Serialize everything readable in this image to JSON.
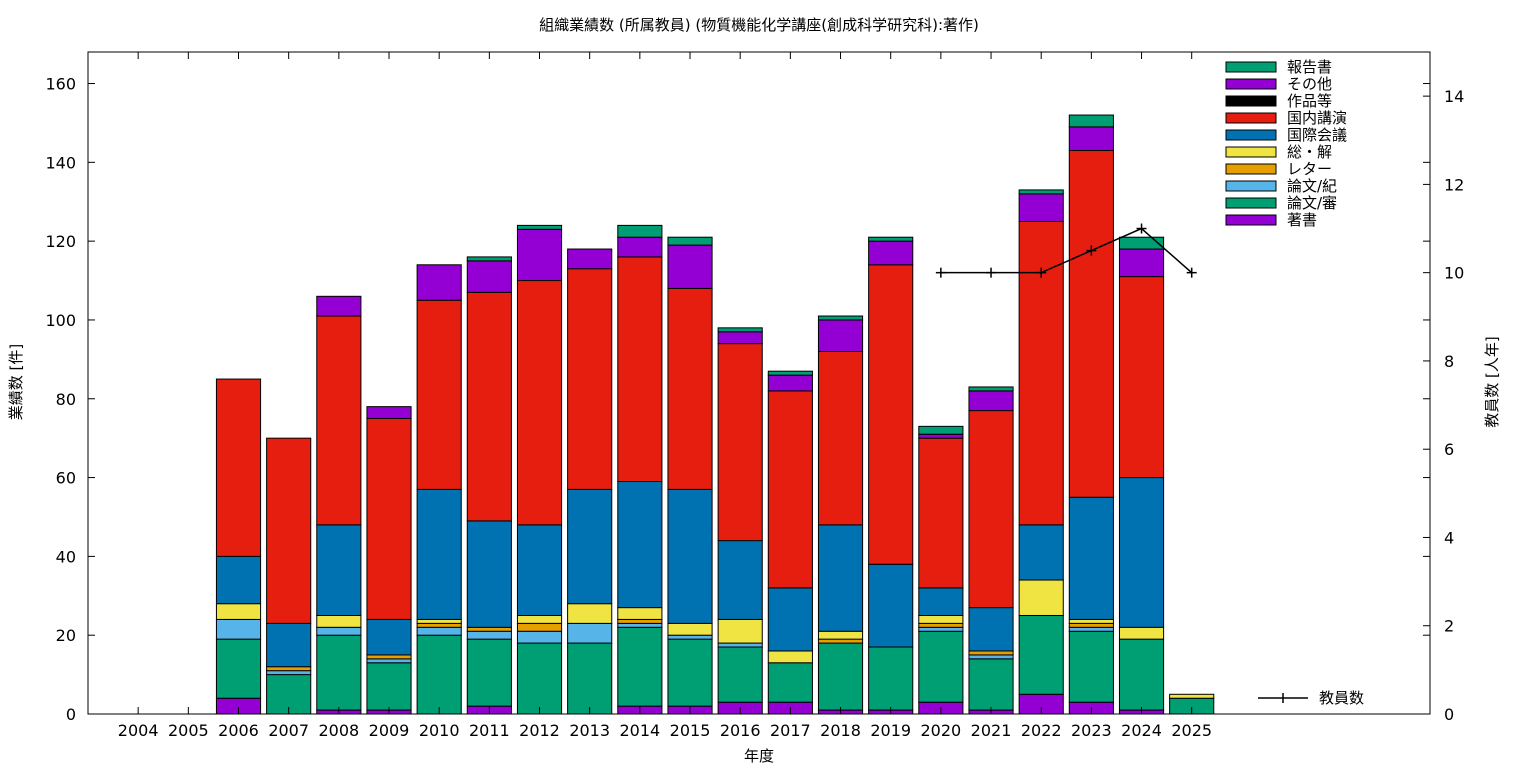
{
  "chart_data": {
    "type": "bar",
    "title": "組織業績数 (所属教員) (物質機能化学講座(創成科学研究科):著作)",
    "xlabel": "年度",
    "ylabel": "業績数 [件]",
    "y2label": "教員数 [人年]",
    "categories": [
      "2004",
      "2005",
      "2006",
      "2007",
      "2008",
      "2009",
      "2010",
      "2011",
      "2012",
      "2013",
      "2014",
      "2015",
      "2016",
      "2017",
      "2018",
      "2019",
      "2020",
      "2021",
      "2022",
      "2023",
      "2024",
      "2025"
    ],
    "ylim": [
      0,
      168
    ],
    "y_ticks": [
      0,
      20,
      40,
      60,
      80,
      100,
      120,
      140,
      160
    ],
    "y2lim": [
      0,
      15
    ],
    "y2_ticks": [
      0,
      2,
      4,
      6,
      8,
      10,
      12,
      14
    ],
    "legend_position": "top-right",
    "grid": false,
    "series": [
      {
        "name": "著書",
        "color": "#9400d3",
        "values": [
          0,
          0,
          4,
          0,
          1,
          1,
          0,
          2,
          0,
          0,
          2,
          2,
          3,
          3,
          1,
          1,
          3,
          1,
          5,
          3,
          1,
          0
        ]
      },
      {
        "name": "論文/審",
        "color": "#009e73",
        "values": [
          0,
          0,
          15,
          10,
          19,
          12,
          20,
          17,
          18,
          18,
          20,
          17,
          14,
          10,
          17,
          16,
          18,
          13,
          20,
          18,
          18,
          4
        ]
      },
      {
        "name": "論文/紀",
        "color": "#56b4e9",
        "values": [
          0,
          0,
          5,
          1,
          2,
          1,
          2,
          2,
          3,
          5,
          1,
          1,
          1,
          0,
          0,
          0,
          1,
          1,
          0,
          1,
          0,
          0
        ]
      },
      {
        "name": "レター",
        "color": "#e69f00",
        "values": [
          0,
          0,
          0,
          1,
          0,
          1,
          1,
          1,
          2,
          0,
          1,
          0,
          0,
          0,
          1,
          0,
          1,
          1,
          0,
          1,
          0,
          0
        ]
      },
      {
        "name": "総・解",
        "color": "#f0e442",
        "values": [
          0,
          0,
          4,
          0,
          3,
          0,
          1,
          0,
          2,
          5,
          3,
          3,
          6,
          3,
          2,
          0,
          2,
          0,
          9,
          1,
          3,
          1
        ]
      },
      {
        "name": "国際会議",
        "color": "#0072b2",
        "values": [
          0,
          0,
          12,
          11,
          23,
          9,
          33,
          27,
          23,
          29,
          32,
          34,
          20,
          16,
          27,
          21,
          7,
          11,
          14,
          31,
          38,
          0
        ]
      },
      {
        "name": "国内講演",
        "color": "#e51e10",
        "values": [
          0,
          0,
          45,
          47,
          53,
          51,
          48,
          58,
          62,
          56,
          57,
          51,
          50,
          50,
          44,
          76,
          38,
          50,
          77,
          88,
          51,
          0
        ]
      },
      {
        "name": "作品等",
        "color": "#000000",
        "values": [
          0,
          0,
          0,
          0,
          0,
          0,
          0,
          0,
          0,
          0,
          0,
          0,
          0,
          0,
          0,
          0,
          0,
          0,
          0,
          0,
          0,
          0
        ]
      },
      {
        "name": "その他",
        "color": "#9400d3",
        "values": [
          0,
          0,
          0,
          0,
          5,
          3,
          9,
          8,
          13,
          5,
          5,
          11,
          3,
          4,
          8,
          6,
          1,
          5,
          7,
          6,
          7,
          0
        ]
      },
      {
        "name": "報告書",
        "color": "#009e73",
        "values": [
          0,
          0,
          0,
          0,
          0,
          0,
          0,
          1,
          1,
          0,
          3,
          2,
          1,
          1,
          1,
          1,
          2,
          1,
          1,
          3,
          3,
          0
        ]
      }
    ],
    "line_series": {
      "name": "教員数",
      "axis": "y2",
      "color": "#000000",
      "points": [
        {
          "x": "2020",
          "y": 10
        },
        {
          "x": "2021",
          "y": 10
        },
        {
          "x": "2022",
          "y": 10
        },
        {
          "x": "2023",
          "y": 10.5
        },
        {
          "x": "2024",
          "y": 11
        },
        {
          "x": "2025",
          "y": 10
        }
      ]
    }
  }
}
